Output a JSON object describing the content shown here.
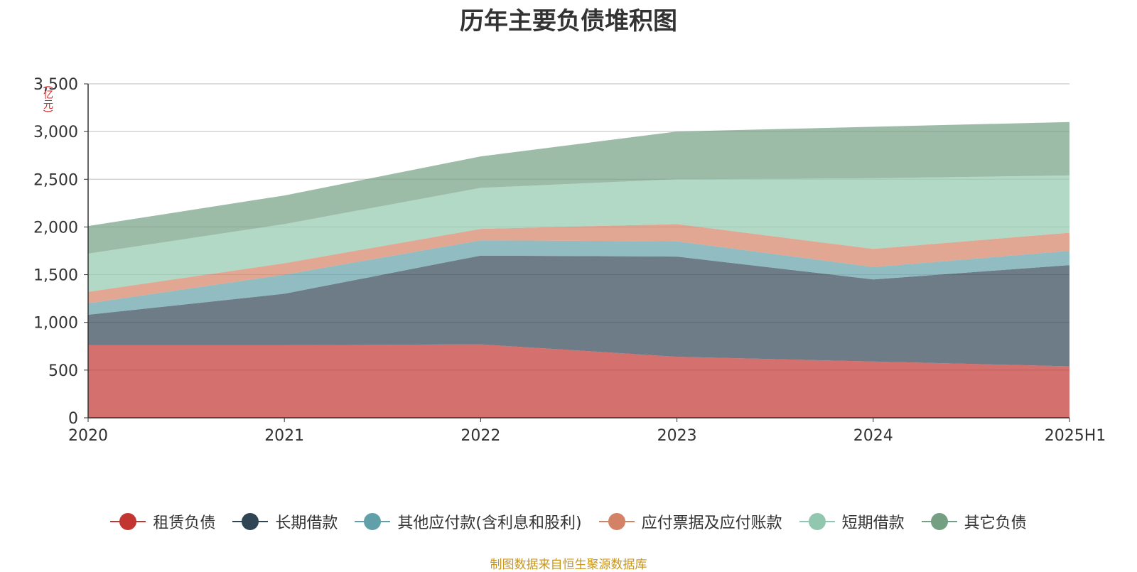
{
  "title": "历年主要负债堆积图",
  "unit_label": "(亿元)",
  "source_text": "制图数据来自恒生聚源数据库",
  "chart_data": {
    "type": "area",
    "stacked": true,
    "title": "历年主要负债堆积图",
    "ylabel": "(亿元)",
    "x": [
      "2020",
      "2021",
      "2022",
      "2023",
      "2024",
      "2025H1"
    ],
    "ylim": [
      0,
      3500
    ],
    "yticks": [
      0,
      500,
      1000,
      1500,
      2000,
      2500,
      3000,
      3500
    ],
    "ytick_labels": [
      "0",
      "500",
      "1,000",
      "1,500",
      "2,000",
      "2,500",
      "3,000",
      "3,500"
    ],
    "grid": true,
    "legend_position": "bottom",
    "series": [
      {
        "name": "租赁负债",
        "color": "#c23531",
        "values": [
          760,
          760,
          770,
          640,
          590,
          540
        ]
      },
      {
        "name": "长期借款",
        "color": "#2f4554",
        "values": [
          320,
          540,
          930,
          1050,
          860,
          1060
        ]
      },
      {
        "name": "其他应付款(含利息和股利)",
        "color": "#61a0a8",
        "values": [
          120,
          200,
          160,
          160,
          130,
          150
        ]
      },
      {
        "name": "应付票据及应付账款",
        "color": "#d48265",
        "values": [
          120,
          120,
          120,
          180,
          190,
          190
        ]
      },
      {
        "name": "短期借款",
        "color": "#91c7ae",
        "values": [
          400,
          410,
          430,
          470,
          740,
          600
        ]
      },
      {
        "name": "其它负债",
        "color": "#749f83",
        "values": [
          290,
          300,
          330,
          500,
          540,
          560
        ]
      }
    ]
  }
}
